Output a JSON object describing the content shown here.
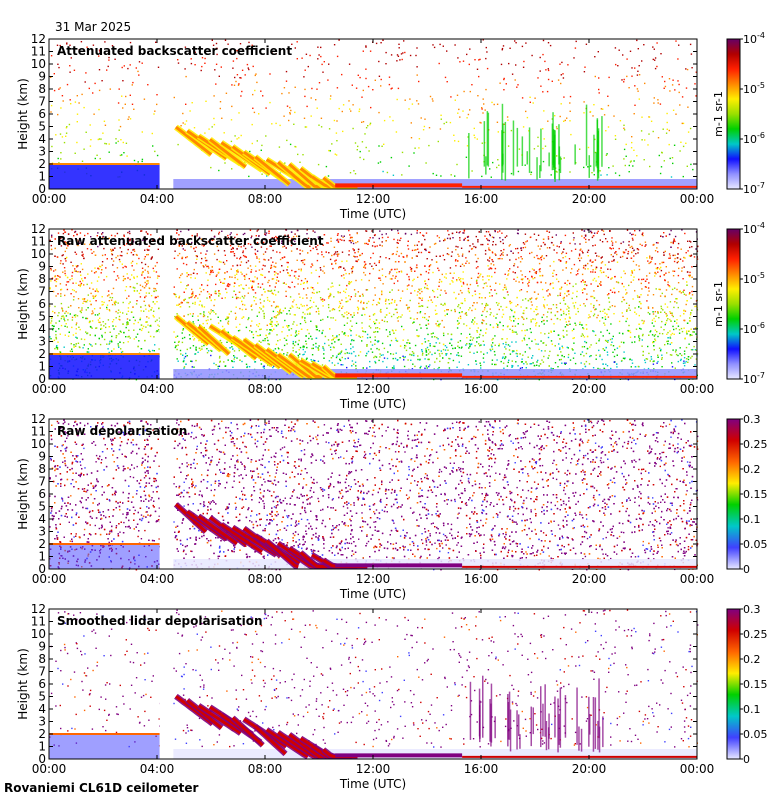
{
  "date": "31 Mar 2025",
  "footer": "Rovaniemi CL61D ceilometer",
  "colors": {
    "background": "#ffffff",
    "frame": "#000000",
    "backscatter_ramp": [
      "#e8e8ff",
      "#9090ff",
      "#1010ff",
      "#00c8c8",
      "#00d000",
      "#9ae000",
      "#ffee00",
      "#ff8800",
      "#ff2000",
      "#b00000",
      "#660066"
    ],
    "depol_ramp": [
      "#e8e8ff",
      "#4040ff",
      "#00c8c8",
      "#00d000",
      "#ffee00",
      "#ff6600",
      "#d00000",
      "#800080"
    ]
  },
  "chart_data": [
    {
      "type": "heatmap",
      "title": "Attenuated backscatter coefficient",
      "xlabel": "Time (UTC)",
      "ylabel": "Height (km)",
      "xticks": [
        "00:00",
        "04:00",
        "08:00",
        "12:00",
        "16:00",
        "20:00",
        "00:00"
      ],
      "yticks": [
        "0",
        "1",
        "2",
        "3",
        "4",
        "5",
        "6",
        "7",
        "8",
        "9",
        "10",
        "11",
        "12"
      ],
      "ylim": [
        0,
        12
      ],
      "xlim_hours": [
        0,
        24
      ],
      "colorbar": {
        "scale": "log",
        "label": "m-1 sr-1",
        "ticks": [
          "10-4",
          "10-5",
          "10-6",
          "10-7"
        ]
      },
      "gap_hours": [
        4.1,
        4.6
      ]
    },
    {
      "type": "heatmap",
      "title": "Raw attenuated backscatter coefficient",
      "xlabel": "Time (UTC)",
      "ylabel": "Height (km)",
      "xticks": [
        "00:00",
        "04:00",
        "08:00",
        "12:00",
        "16:00",
        "20:00",
        "00:00"
      ],
      "yticks": [
        "0",
        "1",
        "2",
        "3",
        "4",
        "5",
        "6",
        "7",
        "8",
        "9",
        "10",
        "11",
        "12"
      ],
      "ylim": [
        0,
        12
      ],
      "xlim_hours": [
        0,
        24
      ],
      "colorbar": {
        "scale": "log",
        "label": "m-1 sr-1",
        "ticks": [
          "10-4",
          "10-5",
          "10-6",
          "10-7"
        ]
      },
      "gap_hours": [
        4.1,
        4.6
      ]
    },
    {
      "type": "heatmap",
      "title": "Raw depolarisation",
      "xlabel": "Time (UTC)",
      "ylabel": "Height (km)",
      "xticks": [
        "00:00",
        "04:00",
        "08:00",
        "12:00",
        "16:00",
        "20:00",
        "00:00"
      ],
      "yticks": [
        "0",
        "1",
        "2",
        "3",
        "4",
        "5",
        "6",
        "7",
        "8",
        "9",
        "10",
        "11",
        "12"
      ],
      "ylim": [
        0,
        12
      ],
      "xlim_hours": [
        0,
        24
      ],
      "colorbar": {
        "scale": "linear",
        "label": "",
        "ticks": [
          "0.3",
          "0.25",
          "0.2",
          "0.15",
          "0.1",
          "0.05",
          "0"
        ],
        "range": [
          0,
          0.3
        ]
      },
      "gap_hours": [
        4.1,
        4.6
      ]
    },
    {
      "type": "heatmap",
      "title": "Smoothed lidar depolarisation",
      "xlabel": "Time (UTC)",
      "ylabel": "Height (km)",
      "xticks": [
        "00:00",
        "04:00",
        "08:00",
        "12:00",
        "16:00",
        "20:00",
        "00:00"
      ],
      "yticks": [
        "0",
        "1",
        "2",
        "3",
        "4",
        "5",
        "6",
        "7",
        "8",
        "9",
        "10",
        "11",
        "12"
      ],
      "ylim": [
        0,
        12
      ],
      "xlim_hours": [
        0,
        24
      ],
      "colorbar": {
        "scale": "linear",
        "label": "",
        "ticks": [
          "0.3",
          "0.25",
          "0.2",
          "0.15",
          "0.1",
          "0.05",
          "0"
        ],
        "range": [
          0,
          0.3
        ]
      },
      "gap_hours": [
        4.1,
        4.6
      ]
    }
  ]
}
